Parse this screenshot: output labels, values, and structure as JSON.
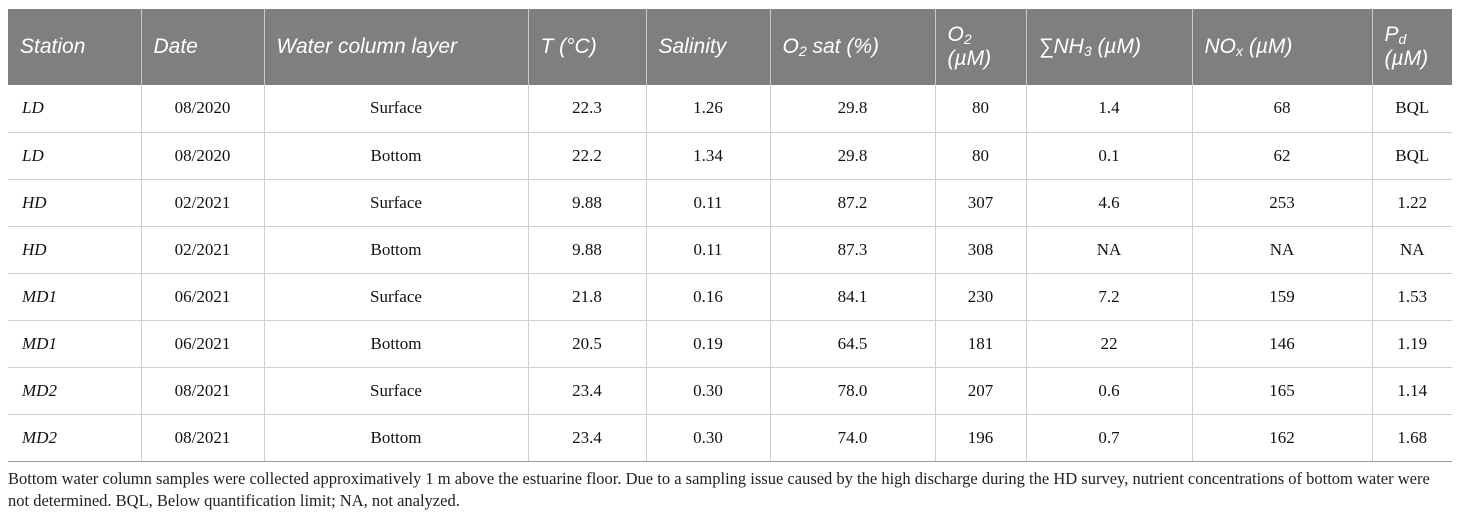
{
  "header": {
    "station": "Station",
    "date": "Date",
    "layer": "Water column layer",
    "temp": "T (°C)",
    "salinity": "Salinity",
    "o2sat_pre": "O",
    "o2sat_sub": "2",
    "o2sat_post": " sat (%)",
    "o2_pre": "O",
    "o2_sub": "2",
    "o2_unit": "(µM)",
    "nh3_pre": "∑NH",
    "nh3_sub": "3",
    "nh3_post": " (µM)",
    "nox_pre": "NO",
    "nox_sub": "x",
    "nox_post": " (µM)",
    "pd_pre": "P",
    "pd_sub": "d",
    "pd_unit": "(µM)"
  },
  "rows": [
    {
      "station": "LD",
      "date": "08/2020",
      "layer": "Surface",
      "temp": "22.3",
      "salinity": "1.26",
      "o2sat": "29.8",
      "o2": "80",
      "nh3": "1.4",
      "nox": "68",
      "pd": "BQL"
    },
    {
      "station": "LD",
      "date": "08/2020",
      "layer": "Bottom",
      "temp": "22.2",
      "salinity": "1.34",
      "o2sat": "29.8",
      "o2": "80",
      "nh3": "0.1",
      "nox": "62",
      "pd": "BQL"
    },
    {
      "station": "HD",
      "date": "02/2021",
      "layer": "Surface",
      "temp": "9.88",
      "salinity": "0.11",
      "o2sat": "87.2",
      "o2": "307",
      "nh3": "4.6",
      "nox": "253",
      "pd": "1.22"
    },
    {
      "station": "HD",
      "date": "02/2021",
      "layer": "Bottom",
      "temp": "9.88",
      "salinity": "0.11",
      "o2sat": "87.3",
      "o2": "308",
      "nh3": "NA",
      "nox": "NA",
      "pd": "NA"
    },
    {
      "station": "MD1",
      "date": "06/2021",
      "layer": "Surface",
      "temp": "21.8",
      "salinity": "0.16",
      "o2sat": "84.1",
      "o2": "230",
      "nh3": "7.2",
      "nox": "159",
      "pd": "1.53"
    },
    {
      "station": "MD1",
      "date": "06/2021",
      "layer": "Bottom",
      "temp": "20.5",
      "salinity": "0.19",
      "o2sat": "64.5",
      "o2": "181",
      "nh3": "22",
      "nox": "146",
      "pd": "1.19"
    },
    {
      "station": "MD2",
      "date": "08/2021",
      "layer": "Surface",
      "temp": "23.4",
      "salinity": "0.30",
      "o2sat": "78.0",
      "o2": "207",
      "nh3": "0.6",
      "nox": "165",
      "pd": "1.14"
    },
    {
      "station": "MD2",
      "date": "08/2021",
      "layer": "Bottom",
      "temp": "23.4",
      "salinity": "0.30",
      "o2sat": "74.0",
      "o2": "196",
      "nh3": "0.7",
      "nox": "162",
      "pd": "1.68"
    }
  ],
  "footnote": "Bottom water column samples were collected approximatively 1 m above the estuarine floor. Due to a sampling issue caused by the high discharge during the HD survey, nutrient concentrations of bottom water were not determined. BQL, Below quantification limit; NA, not analyzed."
}
